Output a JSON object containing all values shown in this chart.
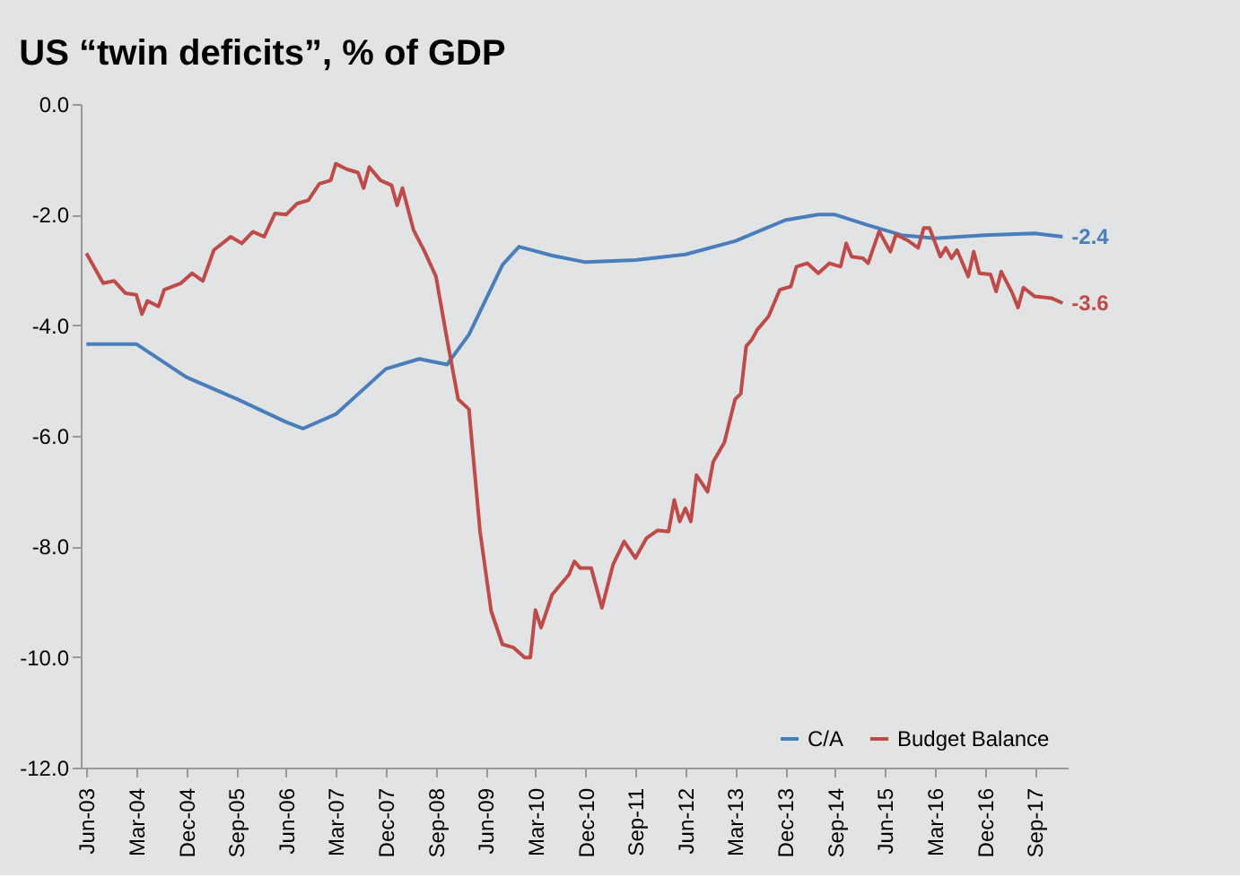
{
  "chart_data": {
    "type": "line",
    "title": "US “twin deficits”, % of GDP",
    "x": [
      "2003-06",
      "2004-03",
      "2004-12",
      "2005-09",
      "2006-06",
      "2006-09",
      "2007-03",
      "2007-12",
      "2008-06",
      "2008-11",
      "2009-03",
      "2009-09",
      "2009-12",
      "2010-06",
      "2010-12",
      "2011-09",
      "2012-06",
      "2013-03",
      "2013-12",
      "2014-06",
      "2014-09",
      "2015-03",
      "2015-09",
      "2016-03",
      "2016-12",
      "2017-09",
      "2018-02"
    ],
    "series": [
      {
        "name": "C/A",
        "color": "#4a7ebb",
        "values": [
          -4.34,
          -4.34,
          -4.94,
          -5.33,
          -5.75,
          -5.87,
          -5.61,
          -4.79,
          -4.61,
          -4.71,
          -4.17,
          -2.91,
          -2.58,
          -2.74,
          -2.86,
          -2.82,
          -2.72,
          -2.48,
          -2.1,
          -2.0,
          -2.0,
          -2.19,
          -2.37,
          -2.43,
          -2.37,
          -2.34,
          -2.4
        ],
        "value_labels": [
          null,
          null,
          null,
          null,
          null,
          null,
          null,
          null,
          null,
          null,
          null,
          null,
          null,
          null,
          null,
          null,
          null,
          null,
          null,
          null,
          null,
          null,
          null,
          null,
          null,
          null,
          "-2.4"
        ]
      },
      {
        "name": "Budget Balance",
        "color": "#be4b48",
        "x": [
          "2003-06",
          "2003-09",
          "2003-11",
          "2004-01",
          "2004-03",
          "2004-04",
          "2004-05",
          "2004-07",
          "2004-08",
          "2004-11",
          "2005-01",
          "2005-03",
          "2005-05",
          "2005-08",
          "2005-10",
          "2005-12",
          "2006-02",
          "2006-04",
          "2006-06",
          "2006-08",
          "2006-10",
          "2006-12",
          "2007-02",
          "2007-03",
          "2007-05",
          "2007-07",
          "2007-08",
          "2007-09",
          "2007-11",
          "2008-01",
          "2008-02",
          "2008-03",
          "2008-05",
          "2008-07",
          "2008-09",
          "2008-11",
          "2009-01",
          "2009-03",
          "2009-05",
          "2009-07",
          "2009-09",
          "2009-11",
          "2010-01",
          "2010-02",
          "2010-03",
          "2010-04",
          "2010-06",
          "2010-09",
          "2010-10",
          "2010-11",
          "2011-01",
          "2011-03",
          "2011-05",
          "2011-07",
          "2011-09",
          "2011-11",
          "2012-01",
          "2012-03",
          "2012-04",
          "2012-05",
          "2012-06",
          "2012-07",
          "2012-08",
          "2012-10",
          "2012-11",
          "2013-01",
          "2013-03",
          "2013-04",
          "2013-05",
          "2013-06",
          "2013-07",
          "2013-09",
          "2013-11",
          "2014-01",
          "2014-02",
          "2014-04",
          "2014-06",
          "2014-08",
          "2014-10",
          "2014-11",
          "2014-12",
          "2015-02",
          "2015-03",
          "2015-05",
          "2015-07",
          "2015-08",
          "2015-10",
          "2015-12",
          "2016-01",
          "2016-02",
          "2016-04",
          "2016-05",
          "2016-06",
          "2016-07",
          "2016-09",
          "2016-10",
          "2016-11",
          "2017-01",
          "2017-02",
          "2017-03",
          "2017-05",
          "2017-06",
          "2017-07",
          "2017-09",
          "2017-12",
          "2018-02"
        ],
        "values": [
          -2.7,
          -3.24,
          -3.2,
          -3.42,
          -3.45,
          -3.8,
          -3.56,
          -3.66,
          -3.36,
          -3.24,
          -3.06,
          -3.2,
          -2.64,
          -2.4,
          -2.52,
          -2.31,
          -2.4,
          -1.98,
          -2.0,
          -1.8,
          -1.74,
          -1.44,
          -1.38,
          -1.08,
          -1.18,
          -1.24,
          -1.52,
          -1.14,
          -1.38,
          -1.47,
          -1.83,
          -1.52,
          -2.28,
          -2.67,
          -3.12,
          -4.26,
          -5.34,
          -5.52,
          -7.73,
          -9.17,
          -9.77,
          -9.83,
          -10.01,
          -10.01,
          -9.15,
          -9.47,
          -8.87,
          -8.51,
          -8.27,
          -8.39,
          -8.39,
          -9.11,
          -8.33,
          -7.91,
          -8.21,
          -7.85,
          -7.71,
          -7.73,
          -7.16,
          -7.55,
          -7.31,
          -7.55,
          -6.71,
          -7.01,
          -6.47,
          -6.12,
          -5.34,
          -5.24,
          -4.38,
          -4.26,
          -4.08,
          -3.84,
          -3.36,
          -3.3,
          -2.94,
          -2.88,
          -3.06,
          -2.88,
          -2.94,
          -2.52,
          -2.76,
          -2.79,
          -2.88,
          -2.3,
          -2.67,
          -2.36,
          -2.46,
          -2.6,
          -2.24,
          -2.24,
          -2.76,
          -2.6,
          -2.79,
          -2.64,
          -3.12,
          -2.67,
          -3.06,
          -3.08,
          -3.39,
          -3.03,
          -3.42,
          -3.68,
          -3.32,
          -3.48,
          -3.51,
          -3.6
        ],
        "value_labels": [
          null,
          null,
          null,
          null,
          null,
          null,
          null,
          null,
          null,
          null,
          null,
          null,
          null,
          null,
          null,
          null,
          null,
          null,
          null,
          null,
          null,
          null,
          null,
          null,
          null,
          null,
          null,
          null,
          null,
          null,
          null,
          null,
          null,
          null,
          null,
          null,
          null,
          null,
          null,
          null,
          null,
          null,
          null,
          null,
          null,
          null,
          null,
          null,
          null,
          null,
          null,
          null,
          null,
          null,
          null,
          null,
          null,
          null,
          null,
          null,
          null,
          null,
          null,
          null,
          null,
          null,
          null,
          null,
          null,
          null,
          null,
          null,
          null,
          null,
          null,
          null,
          null,
          null,
          null,
          null,
          null,
          null,
          null,
          null,
          null,
          null,
          null,
          null,
          null,
          null,
          null,
          null,
          null,
          null,
          null,
          null,
          null,
          null,
          null,
          null,
          null,
          null,
          null,
          null,
          null,
          "-3.6"
        ]
      }
    ],
    "xlim": [
      "2003-05",
      "2018-03"
    ],
    "xticks": [
      {
        "value": "2003-06",
        "label": "Jun-03"
      },
      {
        "value": "2004-03",
        "label": "Mar-04"
      },
      {
        "value": "2004-12",
        "label": "Dec-04"
      },
      {
        "value": "2005-09",
        "label": "Sep-05"
      },
      {
        "value": "2006-06",
        "label": "Jun-06"
      },
      {
        "value": "2007-03",
        "label": "Mar-07"
      },
      {
        "value": "2007-12",
        "label": "Dec-07"
      },
      {
        "value": "2008-09",
        "label": "Sep-08"
      },
      {
        "value": "2009-06",
        "label": "Jun-09"
      },
      {
        "value": "2010-03",
        "label": "Mar-10"
      },
      {
        "value": "2010-12",
        "label": "Dec-10"
      },
      {
        "value": "2011-09",
        "label": "Sep-11"
      },
      {
        "value": "2012-06",
        "label": "Jun-12"
      },
      {
        "value": "2013-03",
        "label": "Mar-13"
      },
      {
        "value": "2013-12",
        "label": "Dec-13"
      },
      {
        "value": "2014-09",
        "label": "Sep-14"
      },
      {
        "value": "2015-06",
        "label": "Jun-15"
      },
      {
        "value": "2016-03",
        "label": "Mar-16"
      },
      {
        "value": "2016-12",
        "label": "Dec-16"
      },
      {
        "value": "2017-09",
        "label": "Sep-17"
      }
    ],
    "ylim": [
      -12,
      0
    ],
    "yticks": [
      {
        "value": 0,
        "label": "0.0"
      },
      {
        "value": -2,
        "label": "-2.0"
      },
      {
        "value": -4,
        "label": "-4.0"
      },
      {
        "value": -6,
        "label": "-6.0"
      },
      {
        "value": -8,
        "label": "-8.0"
      },
      {
        "value": -10,
        "label": "-10.0"
      },
      {
        "value": -12,
        "label": "-12.0"
      }
    ],
    "grid": false,
    "legend": "bottom right",
    "marker": "none",
    "line_style": "solid"
  }
}
